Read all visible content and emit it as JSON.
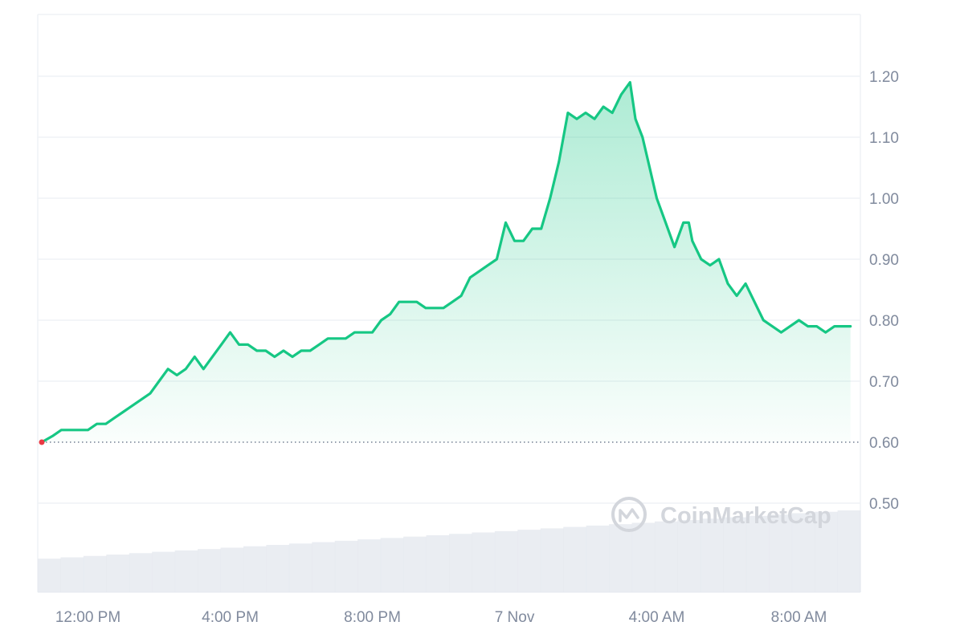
{
  "watermark": {
    "text": "CoinMarketCap"
  },
  "colors": {
    "line": "#16c784",
    "area_top": "#16c784",
    "grid": "#eff2f5",
    "axis_text": "#808a9d",
    "baseline": "#58667e",
    "open_marker": "#ea3943",
    "volume": "#e3e7ed",
    "watermark": "#d3d6dc"
  },
  "chart_data": {
    "type": "area",
    "baseline_value": 0.6,
    "ylim": [
      0.385,
      1.295
    ],
    "yticks": [
      {
        "value": 0.5,
        "label": "0.50"
      },
      {
        "value": 0.6,
        "label": "0.60"
      },
      {
        "value": 0.7,
        "label": "0.70"
      },
      {
        "value": 0.8,
        "label": "0.80"
      },
      {
        "value": 0.9,
        "label": "0.90"
      },
      {
        "value": 1.0,
        "label": "1.00"
      },
      {
        "value": 1.1,
        "label": "1.10"
      },
      {
        "value": 1.2,
        "label": "1.20"
      }
    ],
    "xlim": [
      10.7,
      9.45
    ],
    "xticks": [
      {
        "hour": 12,
        "label": "12:00 PM"
      },
      {
        "hour": 16,
        "label": "4:00 PM"
      },
      {
        "hour": 20,
        "label": "8:00 PM"
      },
      {
        "hour": 24,
        "label": "7 Nov"
      },
      {
        "hour": 28,
        "label": "4:00 AM"
      },
      {
        "hour": 32,
        "label": "8:00 AM"
      }
    ],
    "series": [
      {
        "hours": [
          10.7,
          11.0,
          11.25,
          11.5,
          11.75,
          12.0,
          12.25,
          12.5,
          12.75,
          13.0,
          13.25,
          13.5,
          13.75,
          14.0,
          14.25,
          14.5,
          14.75,
          15.0,
          15.25,
          15.5,
          15.75,
          16.0,
          16.25,
          16.5,
          16.75,
          17.0,
          17.25,
          17.5,
          17.75,
          18.0,
          18.25,
          18.5,
          18.75,
          19.0,
          19.25,
          19.5,
          19.75,
          20.0,
          20.25,
          20.5,
          20.75,
          21.0,
          21.25,
          21.5,
          21.75,
          22.0,
          22.25,
          22.5,
          22.75,
          23.0,
          23.25,
          23.5,
          23.75,
          24.0,
          24.25,
          24.5,
          24.75,
          25.0,
          25.25,
          25.5,
          25.75,
          26.0,
          26.25,
          26.5,
          26.75,
          27.0,
          27.25,
          27.4,
          27.6,
          27.8,
          28.0,
          28.25,
          28.5,
          28.75,
          28.9,
          29.0,
          29.25,
          29.5,
          29.75,
          30.0,
          30.25,
          30.5,
          30.75,
          31.0,
          31.25,
          31.5,
          31.75,
          32.0,
          32.25,
          32.5,
          32.75,
          33.0,
          33.25,
          33.45
        ],
        "values": [
          0.6,
          0.61,
          0.62,
          0.62,
          0.62,
          0.62,
          0.63,
          0.63,
          0.64,
          0.65,
          0.66,
          0.67,
          0.68,
          0.7,
          0.72,
          0.71,
          0.72,
          0.74,
          0.72,
          0.74,
          0.76,
          0.78,
          0.76,
          0.76,
          0.75,
          0.75,
          0.74,
          0.75,
          0.74,
          0.75,
          0.75,
          0.76,
          0.77,
          0.77,
          0.77,
          0.78,
          0.78,
          0.78,
          0.8,
          0.81,
          0.83,
          0.83,
          0.83,
          0.82,
          0.82,
          0.82,
          0.83,
          0.84,
          0.87,
          0.88,
          0.89,
          0.9,
          0.96,
          0.93,
          0.93,
          0.95,
          0.95,
          1.0,
          1.06,
          1.14,
          1.13,
          1.14,
          1.13,
          1.15,
          1.14,
          1.17,
          1.19,
          1.13,
          1.1,
          1.05,
          1.0,
          0.96,
          0.92,
          0.96,
          0.96,
          0.93,
          0.9,
          0.89,
          0.9,
          0.86,
          0.84,
          0.86,
          0.83,
          0.8,
          0.79,
          0.78,
          0.79,
          0.8,
          0.79,
          0.79,
          0.78,
          0.79,
          0.79,
          0.79
        ]
      }
    ],
    "volume_relative": [
      0.3,
      0.32,
      0.34,
      0.36,
      0.38,
      0.4,
      0.42,
      0.44,
      0.46,
      0.48,
      0.5,
      0.52,
      0.54,
      0.56,
      0.58,
      0.6,
      0.62,
      0.64,
      0.66,
      0.68,
      0.7,
      0.72,
      0.74,
      0.76,
      0.78,
      0.8,
      0.82,
      0.84,
      0.86,
      0.88,
      0.9,
      0.92,
      0.94,
      0.96,
      0.98,
      1.0
    ],
    "grid": true,
    "legend": "none"
  }
}
